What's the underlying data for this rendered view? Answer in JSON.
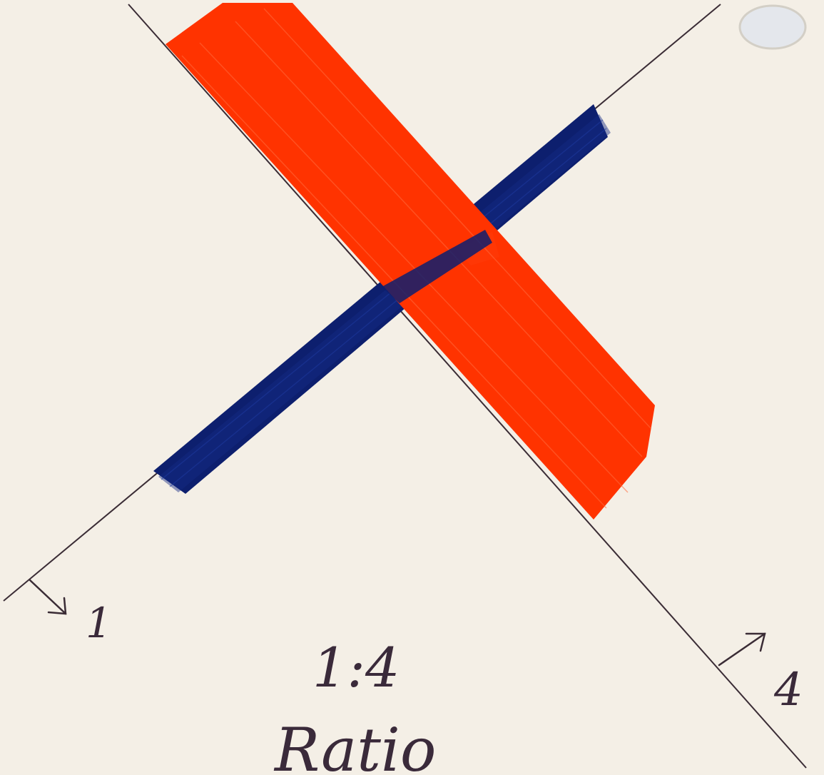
{
  "artwork": {
    "paper_color": "#f4efe6",
    "line_color": "#3a2c35",
    "red_tape_color": "#ff3300",
    "blue_tape_color": "#0d1f6e",
    "labels": {
      "left_marker": "1",
      "right_marker": "4",
      "ratio_value": "1:4",
      "ratio_word": "Ratio"
    }
  }
}
